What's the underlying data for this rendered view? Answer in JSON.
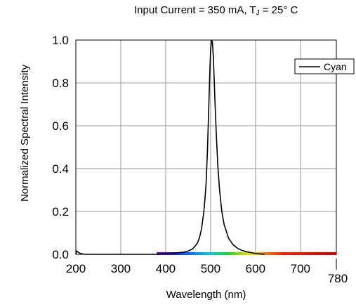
{
  "chart_data": {
    "type": "line",
    "title": {
      "prefix": "Input Current = 350 mA, T",
      "subscript": "J",
      "suffix": " = 25° C"
    },
    "xlabel": "Wavelength (nm)",
    "ylabel": "Normalized Spectral Intensity",
    "xlim": [
      200,
      780
    ],
    "ylim": [
      0,
      1.0
    ],
    "x_ticks": [
      {
        "value": 200,
        "label": "200"
      },
      {
        "value": 300,
        "label": "300"
      },
      {
        "value": 400,
        "label": "400"
      },
      {
        "value": 500,
        "label": "500"
      },
      {
        "value": 600,
        "label": "600"
      },
      {
        "value": 700,
        "label": "700"
      },
      {
        "value": 780,
        "label": "780"
      }
    ],
    "y_ticks": [
      {
        "value": 0.0,
        "label": "0.0"
      },
      {
        "value": 0.2,
        "label": "0.2"
      },
      {
        "value": 0.4,
        "label": "0.4"
      },
      {
        "value": 0.6,
        "label": "0.6"
      },
      {
        "value": 0.8,
        "label": "0.8"
      },
      {
        "value": 1.0,
        "label": "1.0"
      }
    ],
    "grid": true,
    "legend": {
      "position": "top-right",
      "entries": [
        "Cyan"
      ]
    },
    "color_bar": {
      "from": 380,
      "to": 780,
      "description": "visible spectrum strip along x-axis"
    },
    "series": [
      {
        "name": "Cyan",
        "color": "#000000",
        "x": [
          200,
          202,
          205,
          208,
          212,
          220,
          380,
          400,
          420,
          440,
          450,
          460,
          470,
          475,
          480,
          485,
          488,
          490,
          493,
          496,
          498,
          500,
          502,
          504,
          506,
          508,
          510,
          513,
          516,
          520,
          525,
          530,
          540,
          550,
          560,
          570,
          580,
          600,
          620
        ],
        "y": [
          0.0,
          0.015,
          0.01,
          0.006,
          0.003,
          0.0,
          0.0,
          0.003,
          0.006,
          0.01,
          0.015,
          0.025,
          0.05,
          0.075,
          0.12,
          0.2,
          0.27,
          0.33,
          0.48,
          0.68,
          0.83,
          0.95,
          1.0,
          0.99,
          0.93,
          0.82,
          0.7,
          0.55,
          0.42,
          0.3,
          0.2,
          0.14,
          0.075,
          0.045,
          0.028,
          0.018,
          0.012,
          0.004,
          0.0
        ]
      }
    ]
  }
}
